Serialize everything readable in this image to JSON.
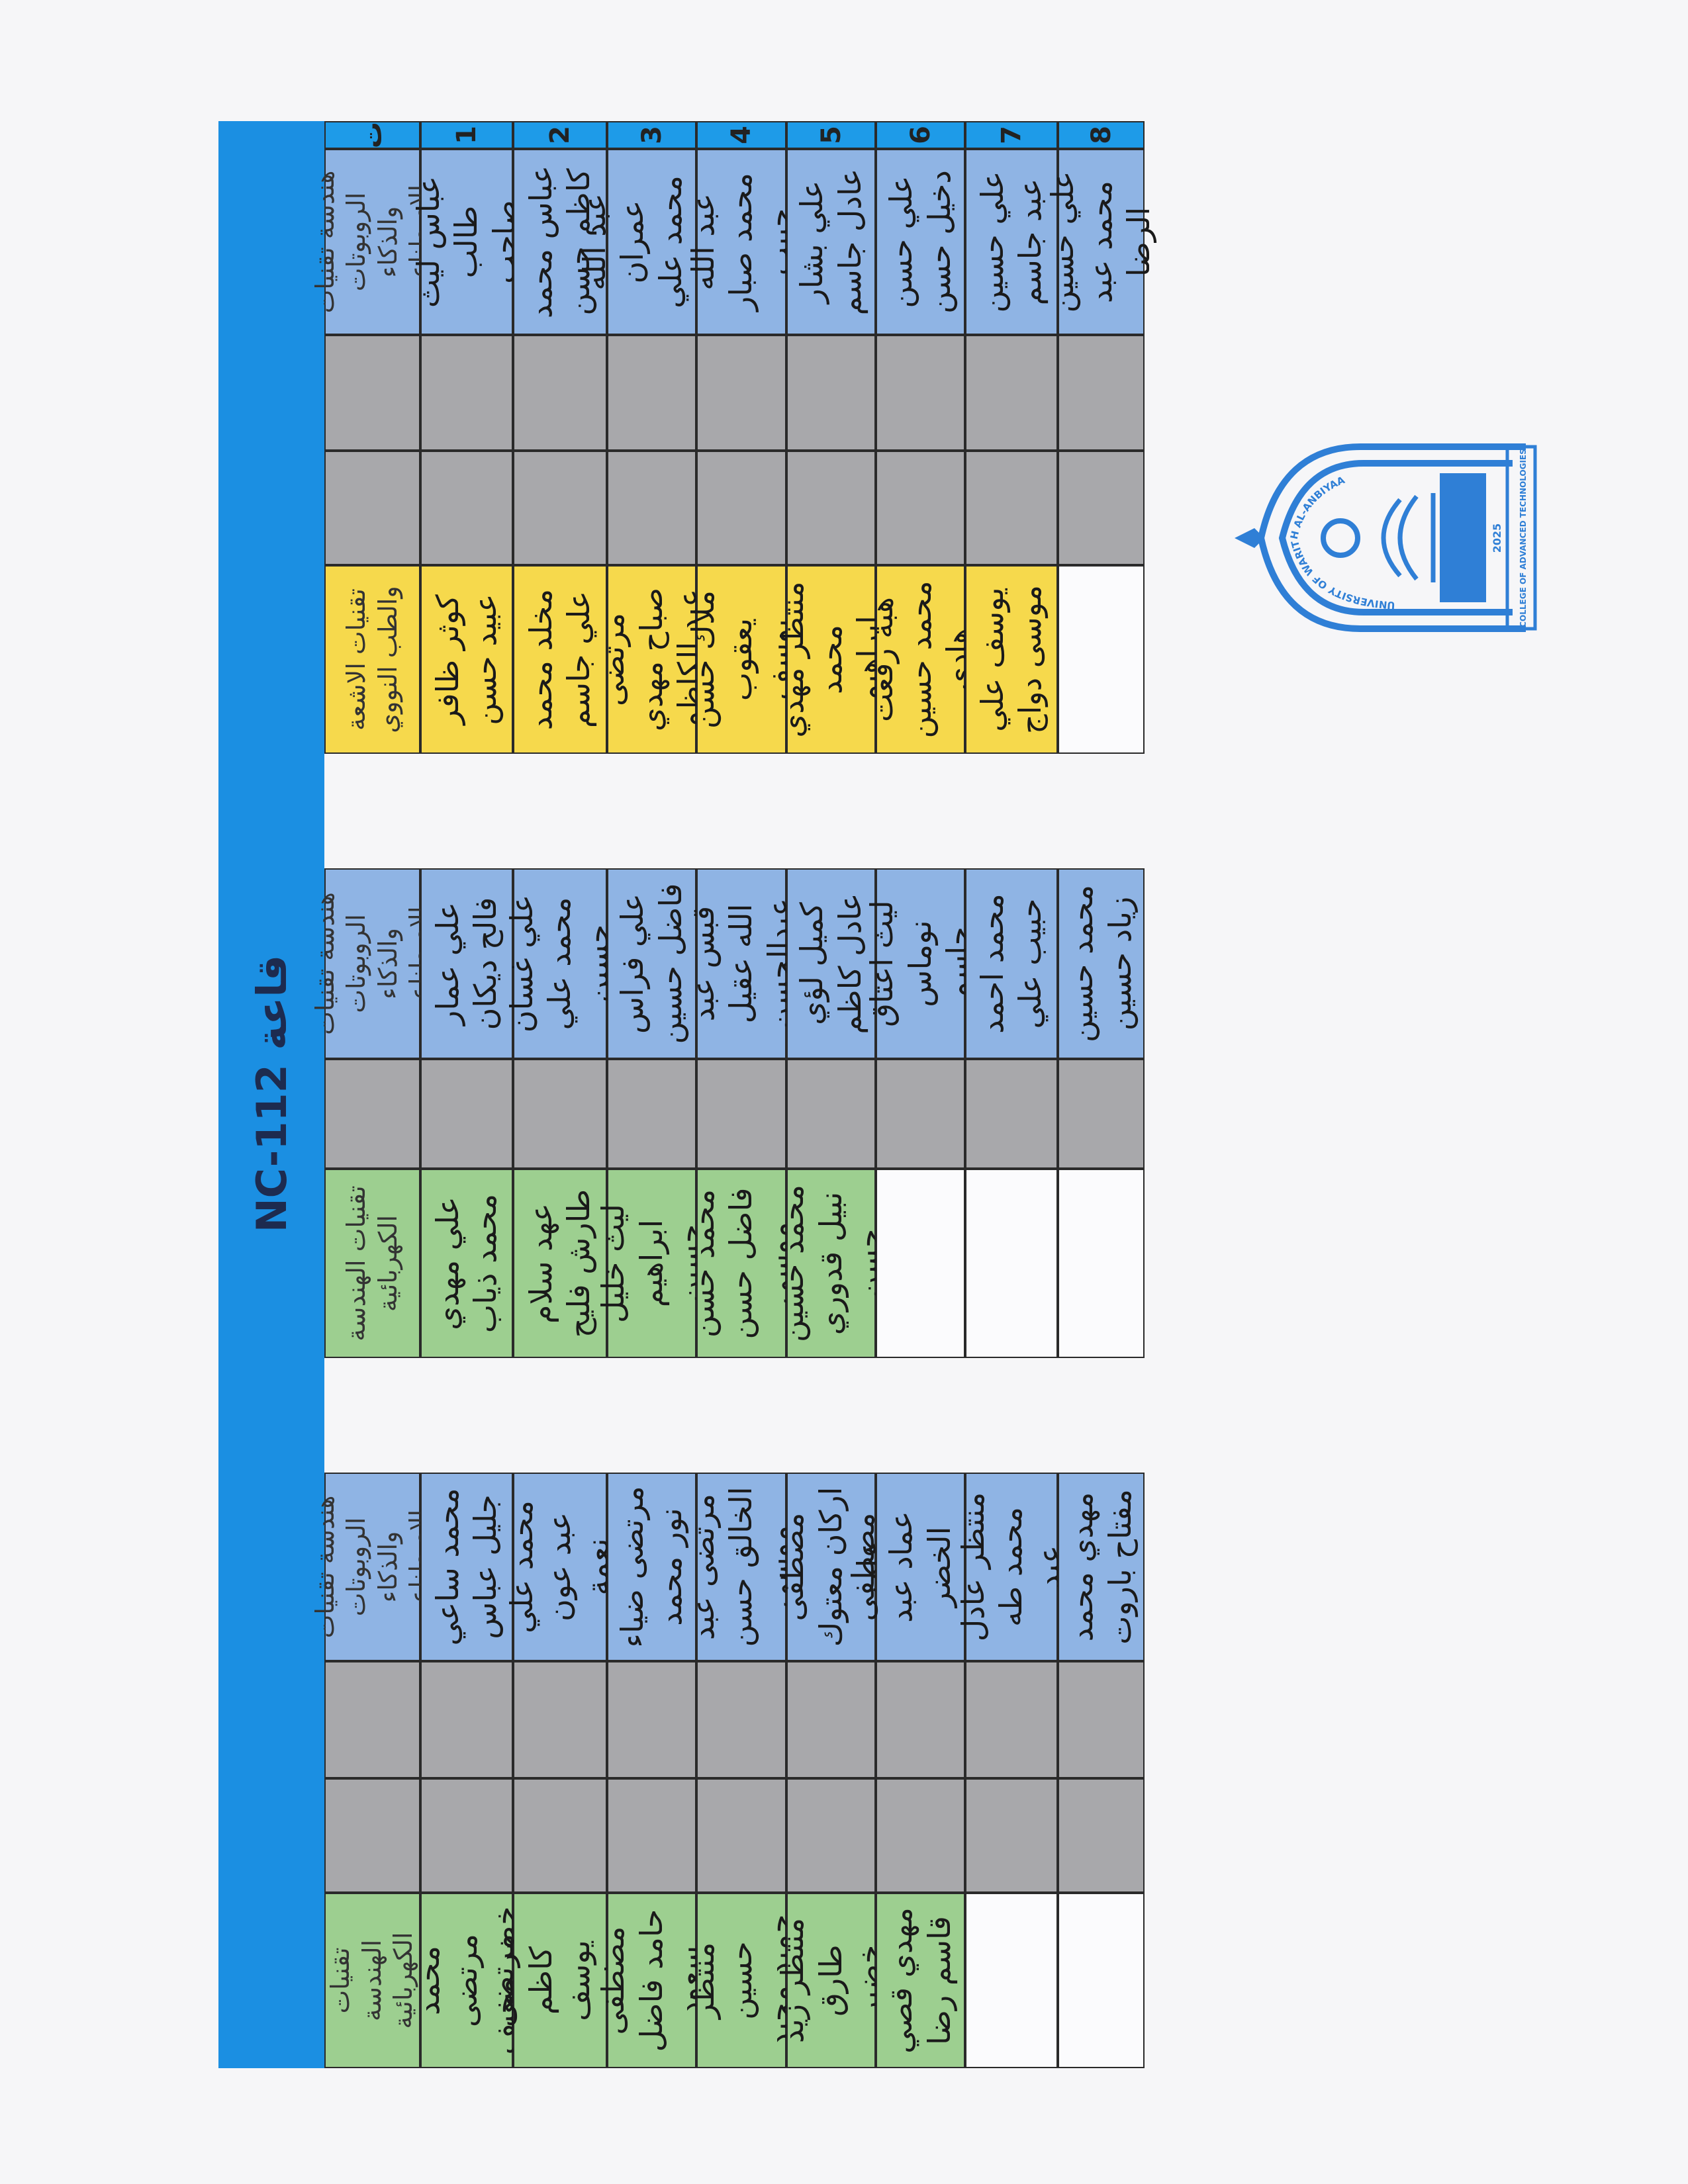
{
  "title": "قاعة NC-112",
  "header_index": "ت",
  "row_numbers": [
    "1",
    "2",
    "3",
    "4",
    "5",
    "6",
    "7",
    "8"
  ],
  "colors": {
    "title_bar": "#1b8fe2",
    "blue": "#8fb4e4",
    "gray": "#a8a8ab",
    "yellow": "#f6d94c",
    "green": "#9dcf90"
  },
  "groups": [
    {
      "header": "هندسة تقنيات الروبوتات والذكاء الاصطناعي",
      "color": "blue",
      "names": [
        "عباس ليث طالب صاحب",
        "عباس محمد كاظم حسن",
        "عبد الله عمران محمد علي محمد حسين",
        "عبد الله محمد صبار حبيب",
        "علي بشار عادل جاسم",
        "علي حسن دخيل حسن",
        "علي حسين عبد جاسم",
        "علي حسين محمد عبد الرضا"
      ]
    },
    {
      "header": "تقنيات الاشعة والطب النووي",
      "color": "yellow",
      "names": [
        "كوثر ظافر عبيد حسن",
        "مخلد محمد علي جاسم",
        "مرتضى صباح مهدي عبد الكاظم",
        "ملاك حسن يعقوب يوسف",
        "منتظر مهدي محمد ابراهيم",
        "هبة رفعت محمد حسين هادي",
        "يوسف علي موسى دواج",
        ""
      ]
    },
    {
      "header": "هندسة تقنيات الروبوتات والذكاء الاصطناعي",
      "color": "blue",
      "names": [
        "علي عمار فالح ديكان",
        "علي غسان محمد علي حسين",
        "علي فراس فاضل حسين",
        "قبس عبد الله عقيل عبدالحسن",
        "كميل لؤي عادل كاظم",
        "ليث اعتاق نوماس جاسم",
        "محمد احمد حبيب علي",
        "محمد حسين زياد حسين"
      ]
    },
    {
      "header": "تقنيات الهندسة الكهربائية",
      "color": "green",
      "names": [
        "علي مهدي محمد ذياب",
        "عهد سلام طارش فليح",
        "ليث خليل ابراهيم حسين",
        "محمد حسن فاضل حسن موسى",
        "محمد حسين نبيل قدوري حسن",
        "",
        "",
        ""
      ]
    },
    {
      "header": "هندسة تقنيات الروبوتات والذكاء الاصطناعي",
      "color": "blue",
      "names": [
        "محمد ساعي جليل عباس",
        "محمد علي عبد عون نعمة",
        "مرتضى ضياء نور محمد",
        "مرتضى عبد الخالق حسن موسى",
        "مصطفى اركان معتوك علي",
        "مصطفى عماد عبد الخضر حسين",
        "منتظر عادل محمد طه عبد",
        "مهدي محمد مفتاح باروت"
      ]
    },
    {
      "header": "تقنيات الهندسة الكهربائية",
      "color": "green",
      "names": [
        "محمد مرتضى خضر مخيف",
        "مرتضى كاظم يوسف هاتف",
        "مصطفى حامد فاضل سعود",
        "منتظر حسين حميد مجيد",
        "منتظر زيد طارق خضير",
        "مهدي قصي قاسم رضا",
        "",
        ""
      ]
    }
  ],
  "logo": {
    "arc_text": "UNIVERSITY OF WARITH AL-ANBIYAA",
    "year": "2025",
    "college_text": "COLLEGE OF ADVANCED TECHNOLOGIES"
  }
}
